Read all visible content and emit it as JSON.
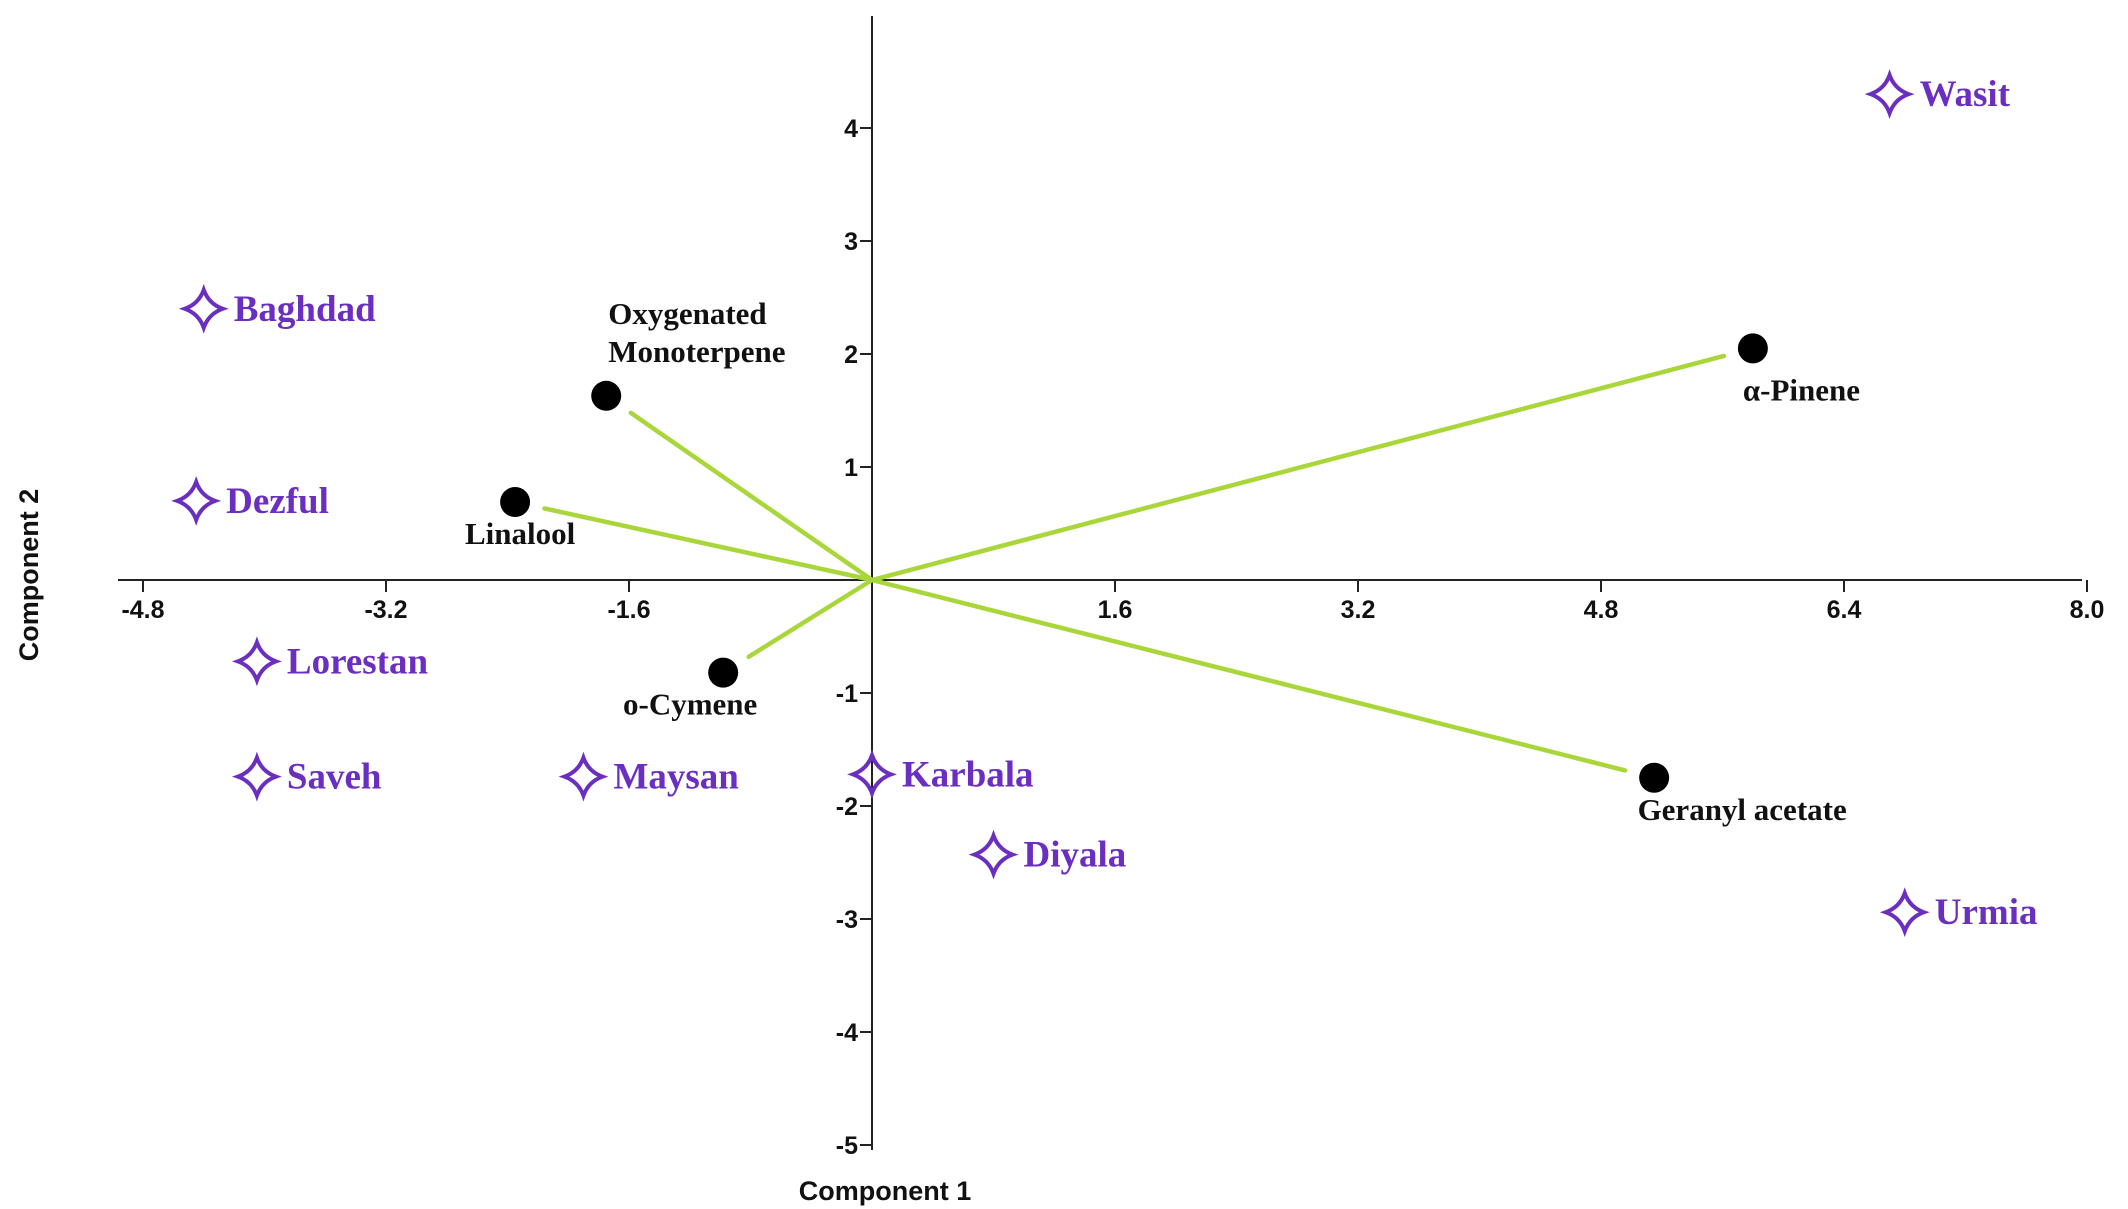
{
  "chart_data": {
    "type": "scatter",
    "subtype": "biplot",
    "xlabel": "Component 1",
    "ylabel": "Component 2",
    "xlim": [
      -5.0,
      8.0
    ],
    "ylim": [
      -5.0,
      5.0
    ],
    "x_ticks": [
      -4.8,
      -3.2,
      -1.6,
      1.6,
      3.2,
      4.8,
      6.4,
      8.0
    ],
    "x_tick_labels": [
      "-4.8",
      "-3.2",
      "-1.6",
      "1.6",
      "3.2",
      "4.8",
      "6.4",
      "8.0"
    ],
    "y_ticks": [
      4,
      3,
      2,
      1,
      -1,
      -2,
      -3,
      -4,
      -5
    ],
    "y_tick_labels": [
      "4",
      "3",
      "2",
      "1",
      "-1",
      "-2",
      "-3",
      "-4",
      "-5"
    ],
    "grid": false,
    "colors": {
      "sites": "#6a2fc0",
      "loadings": "#a9d63a",
      "variables": "#000000"
    },
    "sites": [
      {
        "name": "Wasit",
        "x": 6.7,
        "y": 4.3
      },
      {
        "name": "Baghdad",
        "x": -4.4,
        "y": 2.4
      },
      {
        "name": "Dezful",
        "x": -4.45,
        "y": 0.7
      },
      {
        "name": "Lorestan",
        "x": -4.05,
        "y": -0.72
      },
      {
        "name": "Saveh",
        "x": -4.05,
        "y": -1.74
      },
      {
        "name": "Maysan",
        "x": -1.9,
        "y": -1.74
      },
      {
        "name": "Karbala",
        "x": 0.0,
        "y": -1.72
      },
      {
        "name": "Diyala",
        "x": 0.8,
        "y": -2.43
      },
      {
        "name": "Urmia",
        "x": 6.8,
        "y": -2.94
      }
    ],
    "variables": [
      {
        "name": "α-Pinene",
        "x": 5.8,
        "y": 2.05,
        "lines": [
          "α-Pinene"
        ]
      },
      {
        "name": "Oxygenated Monoterpene",
        "x": -1.75,
        "y": 1.63,
        "lines": [
          "Oxygenated",
          "Monoterpene"
        ]
      },
      {
        "name": "Linalool",
        "x": -2.35,
        "y": 0.69,
        "lines": [
          "Linalool"
        ]
      },
      {
        "name": "o-Cymene",
        "x": -0.98,
        "y": -0.82,
        "lines": [
          "o-Cymene"
        ]
      },
      {
        "name": "Geranyl acetate",
        "x": 5.15,
        "y": -1.75,
        "lines": [
          "Geranyl acetate"
        ]
      }
    ]
  }
}
